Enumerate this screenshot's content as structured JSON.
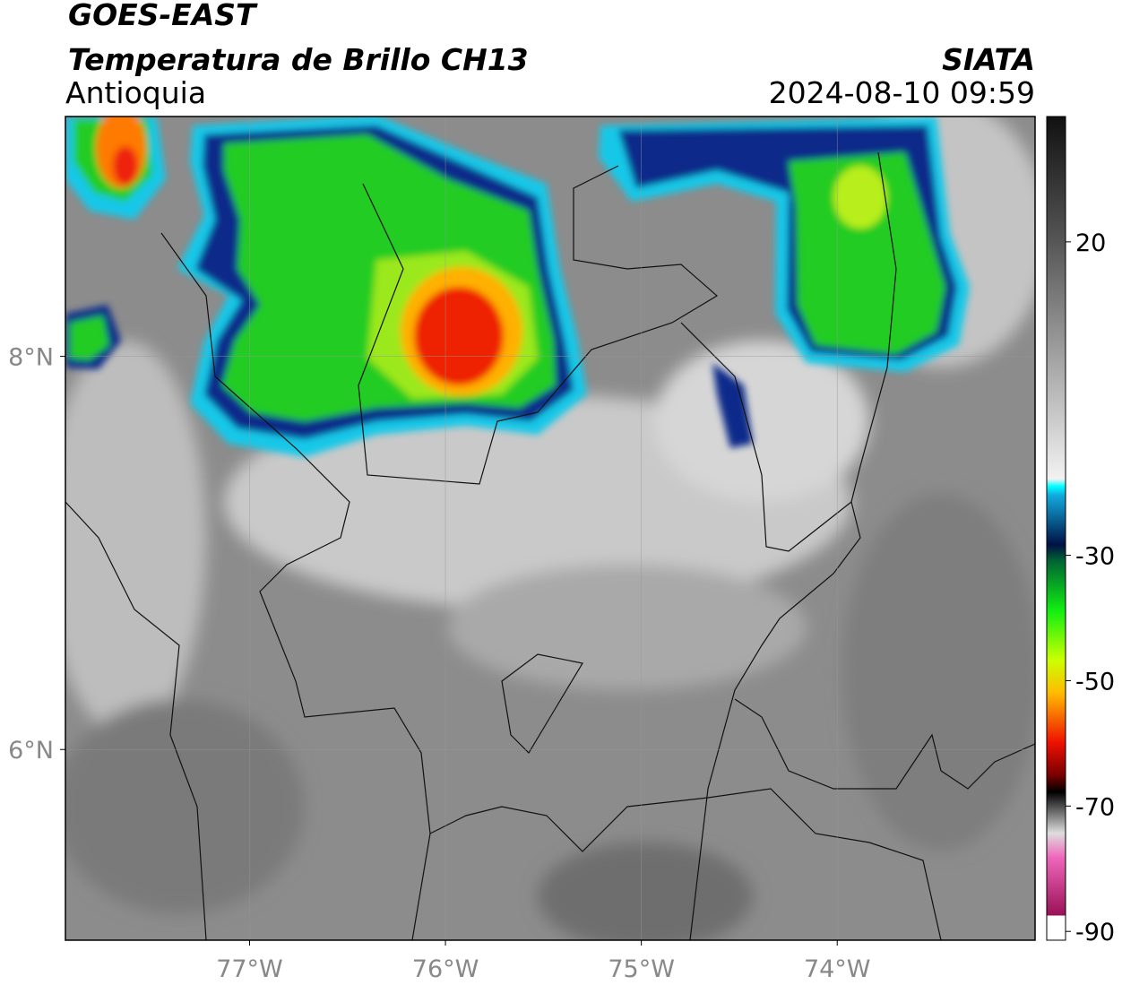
{
  "header": {
    "line1": "GOES-EAST",
    "line2": "Temperatura de Brillo CH13",
    "region": "Antioquia",
    "source": "SIATA",
    "datetime": "2024-08-10 09:59"
  },
  "map": {
    "lonlim": [
      -77.94,
      -72.99
    ],
    "latlim": [
      5.03,
      9.22
    ],
    "lon_ticks": [
      {
        "value": -77,
        "label": "77°W"
      },
      {
        "value": -76,
        "label": "76°W"
      },
      {
        "value": -75,
        "label": "75°W"
      },
      {
        "value": -74,
        "label": "74°W"
      }
    ],
    "lat_ticks": [
      {
        "value": 8,
        "label": "8°N"
      },
      {
        "value": 6,
        "label": "6°N"
      }
    ],
    "grid": true
  },
  "colorbar": {
    "lim": [
      -91.4,
      40
    ],
    "ticks": [
      20,
      -30,
      -50,
      -70,
      -90
    ]
  }
}
